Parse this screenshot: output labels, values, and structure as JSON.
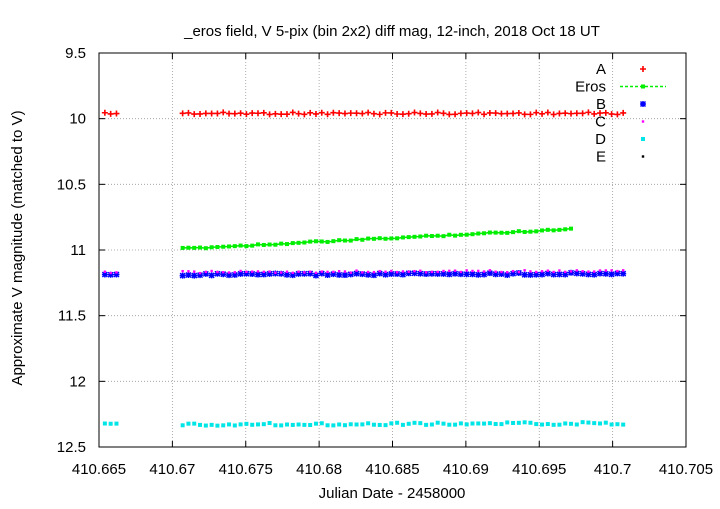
{
  "chart_data": {
    "type": "scatter",
    "title": "_eros field, V 5-pix (bin 2x2) diff mag, 12-inch, 2018 Oct 18 UT",
    "xlabel": "Julian Date - 2458000",
    "ylabel": "Approximate V magnitude (matched to V)",
    "xlim": [
      410.665,
      410.705
    ],
    "ylim": [
      9.5,
      12.5
    ],
    "y_inverted": true,
    "grid": true,
    "legend_position": "top-right",
    "x_ticks": [
      {
        "value": 410.665,
        "label": "410.665"
      },
      {
        "value": 410.67,
        "label": "410.67"
      },
      {
        "value": 410.675,
        "label": "410.675"
      },
      {
        "value": 410.68,
        "label": "410.68"
      },
      {
        "value": 410.685,
        "label": "410.685"
      },
      {
        "value": 410.69,
        "label": "410.69"
      },
      {
        "value": 410.695,
        "label": "410.695"
      },
      {
        "value": 410.7,
        "label": "410.7"
      },
      {
        "value": 410.705,
        "label": "410.705"
      }
    ],
    "y_ticks": [
      {
        "value": 9.5,
        "label": "9.5"
      },
      {
        "value": 10,
        "label": "10"
      },
      {
        "value": 10.5,
        "label": "10.5"
      },
      {
        "value": 11,
        "label": "11"
      },
      {
        "value": 11.5,
        "label": "11.5"
      },
      {
        "value": 12,
        "label": "12"
      },
      {
        "value": 12.5,
        "label": "12.5"
      }
    ],
    "series": [
      {
        "name": "A",
        "color": "#ff0000",
        "marker": "plus",
        "x_start": 410.6654,
        "step": 0.000395,
        "gap_after": 3,
        "gap_to": 410.6707,
        "x_end": 410.7008,
        "y_start": 9.96,
        "y_end": 9.96,
        "jitter": 0.008
      },
      {
        "name": "Eros",
        "color": "#00ee00",
        "marker": "square-line",
        "x_start": 410.6707,
        "step": 0.000395,
        "x_end": 410.6975,
        "y_start": 10.99,
        "y_end": 10.84,
        "jitter": 0.006
      },
      {
        "name": "B",
        "color": "#0000ff",
        "marker": "asterisk",
        "x_start": 410.6654,
        "step": 0.000395,
        "gap_after": 3,
        "gap_to": 410.6707,
        "x_end": 410.7008,
        "y_start": 11.19,
        "y_end": 11.18,
        "jitter": 0.008
      },
      {
        "name": "C",
        "color": "#ff00ff",
        "marker": "dot",
        "x_start": 410.6654,
        "step": 0.000395,
        "gap_after": 3,
        "gap_to": 410.6707,
        "x_end": 410.7008,
        "y_start": 11.17,
        "y_end": 11.16,
        "jitter": 0.008
      },
      {
        "name": "D",
        "color": "#00e5e5",
        "marker": "square",
        "x_start": 410.6654,
        "step": 0.000395,
        "gap_after": 3,
        "gap_to": 410.6707,
        "x_end": 410.7008,
        "y_start": 12.33,
        "y_end": 12.32,
        "jitter": 0.01
      },
      {
        "name": "E",
        "color": "#000000",
        "marker": "dot",
        "x_start": null,
        "x_end": null,
        "y_start": null,
        "y_end": null
      }
    ]
  }
}
